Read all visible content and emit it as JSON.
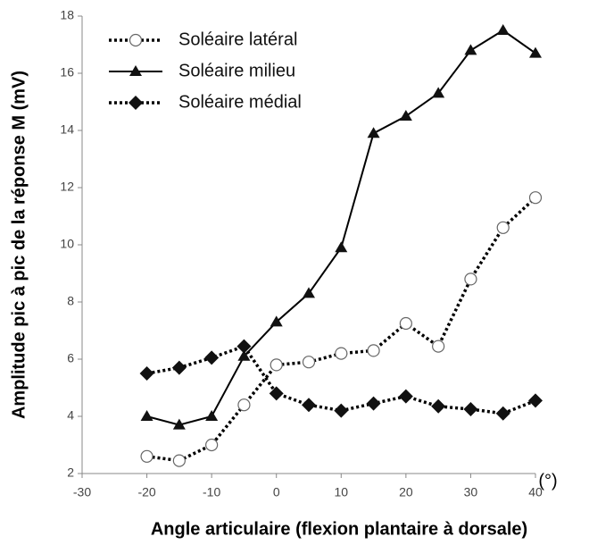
{
  "chart_data": {
    "type": "line",
    "xlabel": "Angle articulaire (flexion plantaire à dorsale)",
    "ylabel": "Amplitude pic à pic de la réponse M (mV)",
    "annotation": "(°)",
    "x": [
      -20,
      -15,
      -10,
      -5,
      0,
      5,
      10,
      15,
      20,
      25,
      30,
      35,
      40
    ],
    "series": [
      {
        "name": "Soléaire latéral",
        "color": "#000000",
        "dash": "dotted",
        "marker": "open-circle",
        "values": [
          2.6,
          2.45,
          3.0,
          4.4,
          5.8,
          5.9,
          6.2,
          6.3,
          7.25,
          6.45,
          8.8,
          10.6,
          11.65
        ]
      },
      {
        "name": "Soléaire milieu",
        "color": "#000000",
        "dash": "solid",
        "marker": "triangle",
        "values": [
          4.0,
          3.7,
          4.0,
          6.1,
          7.3,
          8.3,
          9.9,
          13.9,
          14.5,
          15.3,
          16.8,
          17.5,
          16.7
        ]
      },
      {
        "name": "Soléaire médial",
        "color": "#000000",
        "dash": "dotted",
        "marker": "diamond",
        "values": [
          5.5,
          5.7,
          6.05,
          6.45,
          4.8,
          4.4,
          4.2,
          4.45,
          4.7,
          4.35,
          4.25,
          4.1,
          4.55
        ]
      }
    ],
    "xlim": [
      -30,
      40
    ],
    "xticks": [
      -30,
      -20,
      -10,
      0,
      10,
      20,
      30,
      40
    ],
    "ylim": [
      2,
      18
    ],
    "yticks": [
      2,
      4,
      6,
      8,
      10,
      12,
      14,
      16,
      18
    ],
    "legend": "upper left"
  }
}
